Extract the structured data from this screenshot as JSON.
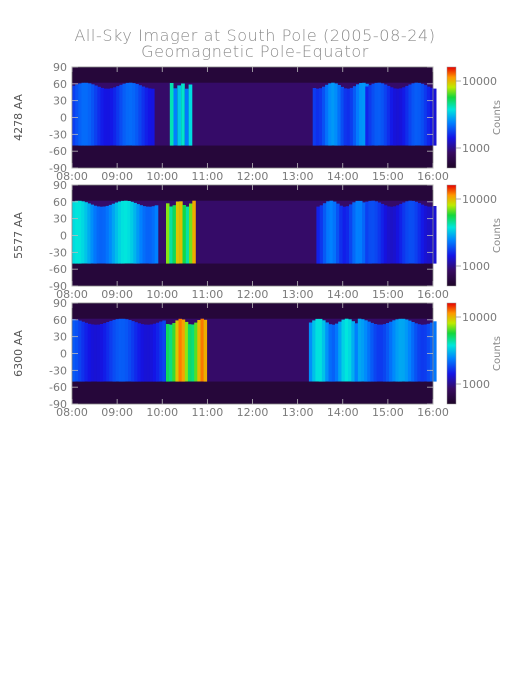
{
  "figure": {
    "title": "All-Sky Imager at South Pole (2005-08-24)",
    "subtitle": "Geomagnetic Pole-Equator"
  },
  "chart_data": [
    {
      "type": "heatmap",
      "ylabel": "4278 AA",
      "colorbar_label": "Counts",
      "colorbar_ticks": [
        "10000",
        "1000"
      ],
      "x_ticks": [
        "08:00",
        "09:00",
        "10:00",
        "11:00",
        "12:00",
        "13:00",
        "14:00",
        "15:00",
        "16:00"
      ],
      "y_ticks": [
        "90",
        "60",
        "30",
        "0",
        "-30",
        "-60",
        "-90"
      ],
      "xlim": [
        "08:00",
        "16:00"
      ],
      "ylim": [
        -90,
        90
      ],
      "bright_intervals": [
        {
          "start": "08:00",
          "end": "09:45",
          "level": 0.42
        },
        {
          "start": "10:10",
          "end": "10:35",
          "level": 0.62
        },
        {
          "start": "13:20",
          "end": "14:30",
          "level": 0.48
        },
        {
          "start": "14:30",
          "end": "16:00",
          "level": 0.4
        }
      ]
    },
    {
      "type": "heatmap",
      "ylabel": "5577 AA",
      "colorbar_label": "Counts",
      "colorbar_ticks": [
        "10000",
        "1000"
      ],
      "x_ticks": [
        "08:00",
        "09:00",
        "10:00",
        "11:00",
        "12:00",
        "13:00",
        "14:00",
        "15:00",
        "16:00"
      ],
      "y_ticks": [
        "90",
        "60",
        "30",
        "0",
        "-30",
        "-60",
        "-90"
      ],
      "xlim": [
        "08:00",
        "16:00"
      ],
      "ylim": [
        -90,
        90
      ],
      "bright_intervals": [
        {
          "start": "08:00",
          "end": "09:50",
          "level": 0.58
        },
        {
          "start": "10:05",
          "end": "10:40",
          "level": 0.88
        },
        {
          "start": "13:25",
          "end": "14:30",
          "level": 0.45
        },
        {
          "start": "14:30",
          "end": "16:00",
          "level": 0.38
        }
      ]
    },
    {
      "type": "heatmap",
      "ylabel": "6300 AA",
      "colorbar_label": "Counts",
      "colorbar_ticks": [
        "10000",
        "1000"
      ],
      "x_ticks": [
        "08:00",
        "09:00",
        "10:00",
        "11:00",
        "12:00",
        "13:00",
        "14:00",
        "15:00",
        "16:00"
      ],
      "y_ticks": [
        "90",
        "60",
        "30",
        "0",
        "-30",
        "-60",
        "-90"
      ],
      "xlim": [
        "08:00",
        "16:00"
      ],
      "ylim": [
        -90,
        90
      ],
      "bright_intervals": [
        {
          "start": "08:00",
          "end": "10:00",
          "level": 0.4
        },
        {
          "start": "10:05",
          "end": "10:55",
          "level": 0.92
        },
        {
          "start": "13:15",
          "end": "14:20",
          "level": 0.58
        },
        {
          "start": "14:20",
          "end": "16:00",
          "level": 0.5
        }
      ]
    }
  ]
}
